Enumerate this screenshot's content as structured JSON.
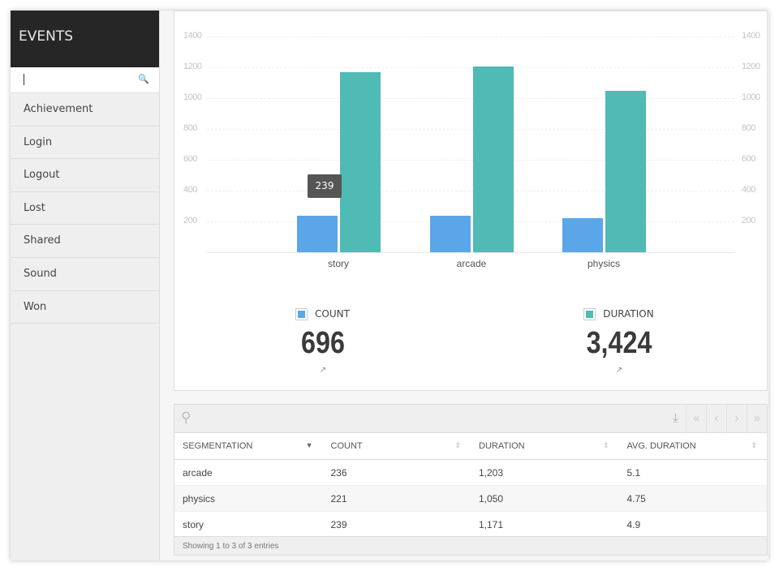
{
  "sidebar": {
    "title": "EVENTS",
    "search_placeholder": "",
    "items": [
      {
        "label": "Achievement"
      },
      {
        "label": "Login"
      },
      {
        "label": "Logout"
      },
      {
        "label": "Lost"
      },
      {
        "label": "Shared"
      },
      {
        "label": "Sound"
      },
      {
        "label": "Won"
      }
    ]
  },
  "chart_data": {
    "type": "bar",
    "categories": [
      "story",
      "arcade",
      "physics"
    ],
    "series": [
      {
        "name": "COUNT",
        "values": [
          239,
          236,
          221
        ],
        "color": "#5ba6e8"
      },
      {
        "name": "DURATION",
        "values": [
          1171,
          1203,
          1050
        ],
        "color": "#50bab5"
      }
    ],
    "yticks": [
      200,
      400,
      600,
      800,
      1000,
      1200,
      1400
    ],
    "ylim": [
      0,
      1400
    ],
    "tooltip": "239",
    "grid": true
  },
  "totals": {
    "count_label": "COUNT",
    "count_value": "696",
    "duration_label": "DURATION",
    "duration_value": "3,424",
    "trend_icon": "trend-up-icon"
  },
  "table": {
    "columns": [
      "SEGMENTATION",
      "COUNT",
      "DURATION",
      "AVG. DURATION"
    ],
    "rows": [
      [
        "arcade",
        "236",
        "1,203",
        "5.1"
      ],
      [
        "physics",
        "221",
        "1,050",
        "4.75"
      ],
      [
        "story",
        "239",
        "1,171",
        "4.9"
      ]
    ],
    "footer": "Showing 1 to 3 of 3 entries"
  }
}
